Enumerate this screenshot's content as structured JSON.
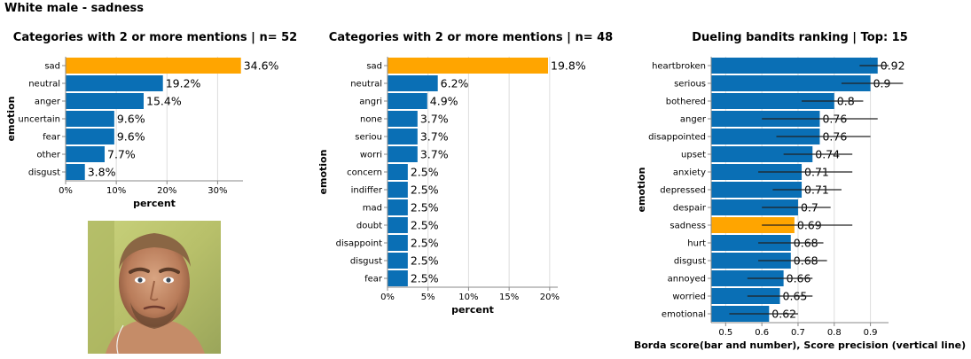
{
  "page": {
    "title": "White male - sadness"
  },
  "colors": {
    "highlight": "#ffa500",
    "bar": "#0a6fb5",
    "grid": "#dddddd",
    "axis": "#888888"
  },
  "chart_data": [
    {
      "type": "bar",
      "orientation": "horizontal",
      "title": "Categories with 2 or more mentions | n= 52",
      "xlabel": "percent",
      "ylabel": "emotion",
      "xlim": [
        0,
        35
      ],
      "xticks": [
        0,
        10,
        20,
        30
      ],
      "xtick_labels": [
        "0%",
        "10%",
        "20%",
        "30%"
      ],
      "grid": true,
      "highlight": "sad",
      "categories": [
        "sad",
        "neutral",
        "anger",
        "uncertain",
        "fear",
        "other",
        "disgust"
      ],
      "values": [
        34.6,
        19.2,
        15.4,
        9.6,
        9.6,
        7.7,
        3.8
      ],
      "value_labels": [
        "34.6%",
        "19.2%",
        "15.4%",
        "9.6%",
        "9.6%",
        "7.7%",
        "3.8%"
      ]
    },
    {
      "type": "bar",
      "orientation": "horizontal",
      "title": "Categories with 2 or more mentions | n= 48",
      "xlabel": "percent",
      "ylabel": "emotion",
      "xlim": [
        0,
        21
      ],
      "xticks": [
        0,
        5,
        10,
        15,
        20
      ],
      "xtick_labels": [
        "0%",
        "5%",
        "10%",
        "15%",
        "20%"
      ],
      "grid": true,
      "highlight": "sad",
      "categories": [
        "sad",
        "neutral",
        "angri",
        "none",
        "seriou",
        "worri",
        "concern",
        "indiffer",
        "mad",
        "doubt",
        "disappoint",
        "disgust",
        "fear"
      ],
      "values": [
        19.8,
        6.2,
        4.9,
        3.7,
        3.7,
        3.7,
        2.5,
        2.5,
        2.5,
        2.5,
        2.5,
        2.5,
        2.5
      ],
      "value_labels": [
        "19.8%",
        "6.2%",
        "4.9%",
        "3.7%",
        "3.7%",
        "3.7%",
        "2.5%",
        "2.5%",
        "2.5%",
        "2.5%",
        "2.5%",
        "2.5%",
        "2.5%"
      ]
    },
    {
      "type": "bar",
      "orientation": "horizontal",
      "title": "Dueling bandits ranking | Top: 15",
      "xlabel": "Borda score(bar and number), Score precision (vertical line)",
      "ylabel": "emotion",
      "xlim": [
        0.46,
        0.95
      ],
      "xticks": [
        0.5,
        0.6,
        0.7,
        0.8,
        0.9
      ],
      "xtick_labels": [
        "0.5",
        "0.6",
        "0.7",
        "0.8",
        "0.9"
      ],
      "grid": true,
      "highlight": "sadness",
      "categories": [
        "heartbroken",
        "serious",
        "bothered",
        "anger",
        "disappointed",
        "upset",
        "anxiety",
        "depressed",
        "despair",
        "sadness",
        "hurt",
        "disgust",
        "annoyed",
        "worried",
        "emotional"
      ],
      "values": [
        0.92,
        0.9,
        0.8,
        0.76,
        0.76,
        0.74,
        0.71,
        0.71,
        0.7,
        0.69,
        0.68,
        0.68,
        0.66,
        0.65,
        0.62
      ],
      "value_labels": [
        "0.92",
        "0.9",
        "0.8",
        "0.76",
        "0.76",
        "0.74",
        "0.71",
        "0.71",
        "0.7",
        "0.69",
        "0.68",
        "0.68",
        "0.66",
        "0.65",
        "0.62"
      ],
      "error_low": [
        0.87,
        0.82,
        0.71,
        0.6,
        0.64,
        0.66,
        0.59,
        0.63,
        0.6,
        0.6,
        0.59,
        0.59,
        0.56,
        0.56,
        0.51
      ],
      "error_high": [
        0.95,
        0.99,
        0.88,
        0.92,
        0.9,
        0.85,
        0.85,
        0.82,
        0.79,
        0.85,
        0.77,
        0.78,
        0.74,
        0.74,
        0.7
      ]
    }
  ]
}
